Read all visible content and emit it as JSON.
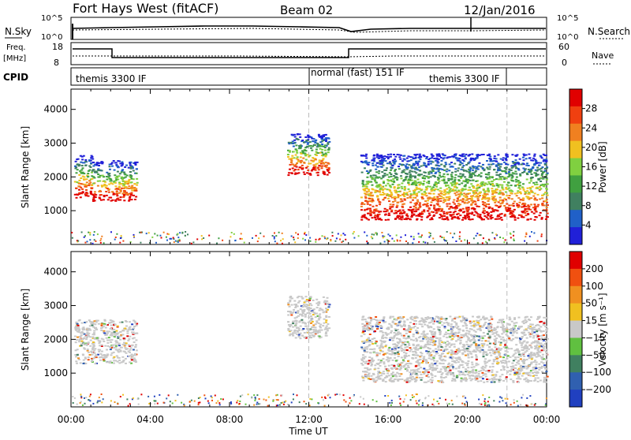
{
  "header": {
    "station": "Fort Hays West (fitACF)",
    "beam": "Beam 02",
    "date": "12/Jan/2016"
  },
  "top_panel": {
    "left_label": "N.Sky",
    "left_ticks": [
      "10^5",
      "10^0"
    ],
    "right_ticks": [
      "10^5",
      "10^0"
    ],
    "right_label": "N.Search"
  },
  "freq_panel": {
    "left_label_1": "Freq.",
    "left_label_2": "[MHz]",
    "left_ticks": [
      "18",
      "8"
    ],
    "right_ticks": [
      "60",
      "0"
    ],
    "right_label": "Nave"
  },
  "cpid_panel": {
    "label": "CPID",
    "segments": [
      {
        "text": "themis 3300 IF",
        "start_hour": 0
      },
      {
        "text": "normal (fast) 151 IF",
        "start_hour": 12
      },
      {
        "text": "themis 3300 IF",
        "start_hour": 22
      }
    ]
  },
  "chart_data": [
    {
      "type": "heatmap",
      "quantity": "power",
      "ylabel": "Slant Range [km]",
      "ylim": [
        0,
        4600
      ],
      "yticks": [
        "1000",
        "2000",
        "3000",
        "4000"
      ],
      "xlabel": "Time UT",
      "xlim_hours": [
        0,
        24
      ],
      "xticks": [
        "00:00",
        "04:00",
        "08:00",
        "12:00",
        "16:00",
        "20:00",
        "00:00"
      ],
      "colorbar": {
        "label": "Power [dB]",
        "ticks": [
          "28",
          "24",
          "20",
          "16",
          "12",
          "8",
          "4"
        ],
        "range": [
          0,
          32
        ],
        "colors": [
          "#2020d8",
          "#2060c8",
          "#408060",
          "#40a040",
          "#80d040",
          "#f0c020",
          "#f08020",
          "#f04010",
          "#e00000"
        ]
      },
      "regions": [
        {
          "t0": 0.15,
          "t1": 1.05,
          "r0": 1400,
          "r1": 2650,
          "level": "high"
        },
        {
          "t0": 1.05,
          "t1": 3.3,
          "r0": 1300,
          "r1": 2500,
          "level": "mid"
        },
        {
          "t0": 10.9,
          "t1": 13.0,
          "r0": 2050,
          "r1": 3300,
          "level": "mid"
        },
        {
          "t0": 14.6,
          "t1": 24.0,
          "r0": 750,
          "r1": 2700,
          "level": "high"
        }
      ]
    },
    {
      "type": "heatmap",
      "quantity": "velocity",
      "ylabel": "Slant Range [km]",
      "ylim": [
        0,
        4600
      ],
      "yticks": [
        "1000",
        "2000",
        "3000",
        "4000"
      ],
      "xlabel": "Time UT",
      "xlim_hours": [
        0,
        24
      ],
      "xticks": [
        "00:00",
        "04:00",
        "08:00",
        "12:00",
        "16:00",
        "20:00",
        "00:00"
      ],
      "colorbar": {
        "label": "Velocity [m s⁻¹]",
        "ticks": [
          "200",
          "100",
          "50",
          "15",
          "−15",
          "−50",
          "−100",
          "−200"
        ],
        "colors": [
          "#2040c0",
          "#3060b0",
          "#408060",
          "#60c040",
          "#c8c8c8",
          "#f0c020",
          "#f09020",
          "#f05010",
          "#e00000"
        ]
      },
      "regions": [
        {
          "t0": 0.15,
          "t1": 3.3,
          "r0": 1300,
          "r1": 2600,
          "level": "ground"
        },
        {
          "t0": 10.9,
          "t1": 13.0,
          "r0": 2050,
          "r1": 3300,
          "level": "ground"
        },
        {
          "t0": 14.6,
          "t1": 24.0,
          "r0": 750,
          "r1": 2700,
          "level": "ground"
        }
      ]
    }
  ],
  "colors": {
    "frame": "#000000",
    "ground_scatter": "#c8c8c8",
    "gridline": "#bbbbbb"
  }
}
